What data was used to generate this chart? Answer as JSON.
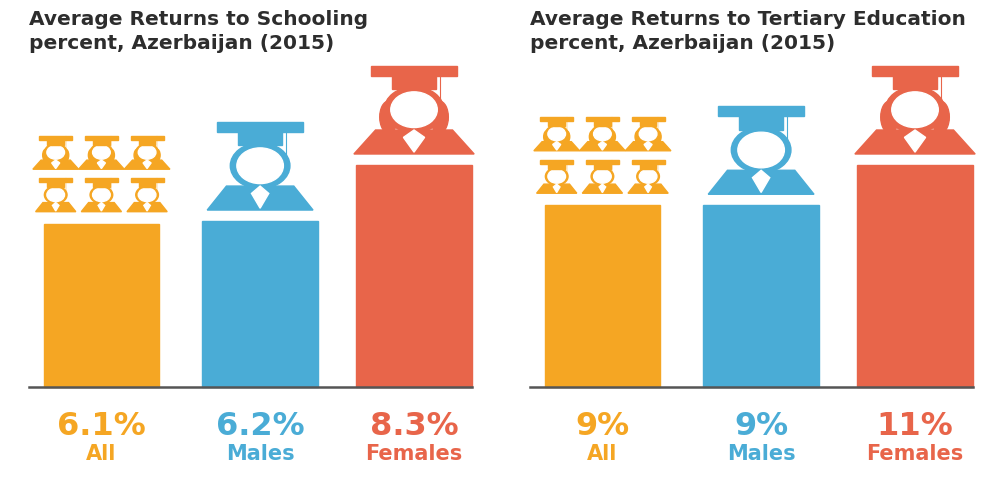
{
  "chart1": {
    "title": "Average Returns to Schooling\npercent, Azerbaijan (2015)",
    "values": [
      6.1,
      6.2,
      8.3
    ],
    "labels": [
      "6.1%",
      "6.2%",
      "8.3%"
    ],
    "sublabels": [
      "All",
      "Males",
      "Females"
    ],
    "colors": [
      "#F5A623",
      "#4AACD6",
      "#E8654A"
    ]
  },
  "chart2": {
    "title": "Average Returns to Tertiary Education\npercent, Azerbaijan (2015)",
    "values": [
      9,
      9,
      11
    ],
    "labels": [
      "9%",
      "9%",
      "11%"
    ],
    "sublabels": [
      "All",
      "Males",
      "Females"
    ],
    "colors": [
      "#F5A623",
      "#4AACD6",
      "#E8654A"
    ]
  },
  "background_color": "#FFFFFF",
  "title_color": "#2d2d2d",
  "title_fontsize": 14.5,
  "label_fontsize": 23,
  "sublabel_fontsize": 15
}
